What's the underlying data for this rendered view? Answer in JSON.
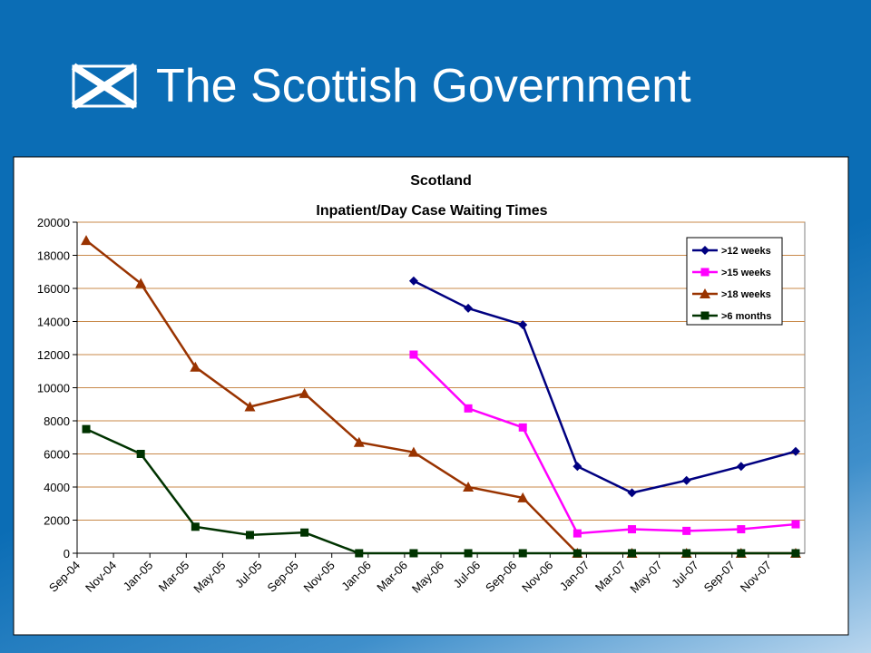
{
  "header": {
    "title": "The Scottish Government"
  },
  "chart_data": {
    "type": "line",
    "title": "Scotland",
    "subtitle": "Inpatient/Day Case Waiting Times",
    "x": [
      "Sep-04",
      "Dec-04",
      "Mar-05",
      "Jun-05",
      "Sep-05",
      "Dec-05",
      "Mar-06",
      "Jun-06",
      "Sep-06",
      "Dec-06",
      "Mar-07",
      "Jun-07",
      "Sep-07",
      "Dec-07"
    ],
    "xlim": [
      "Sep-04",
      "Dec-07"
    ],
    "xticks": [
      "Sep-04",
      "Nov-04",
      "Jan-05",
      "Mar-05",
      "May-05",
      "Jul-05",
      "Sep-05",
      "Nov-05",
      "Jan-06",
      "Mar-06",
      "May-06",
      "Jul-06",
      "Sep-06",
      "Nov-06",
      "Jan-07",
      "Mar-07",
      "May-07",
      "Jul-07",
      "Sep-07",
      "Nov-07"
    ],
    "ylim": [
      0,
      20000
    ],
    "yticks": [
      0,
      2000,
      4000,
      6000,
      8000,
      10000,
      12000,
      14000,
      16000,
      18000,
      20000
    ],
    "grid": true,
    "grid_color": "#c8894a",
    "legend": "upper right",
    "series": [
      {
        "name": ">12 weeks",
        "color": "#000080",
        "marker": "diamond",
        "values": [
          null,
          null,
          null,
          null,
          null,
          null,
          16450,
          14800,
          13800,
          5250,
          3650,
          4400,
          5250,
          6150
        ]
      },
      {
        "name": ">15 weeks",
        "color": "#ff00ff",
        "marker": "square",
        "values": [
          null,
          null,
          null,
          null,
          null,
          null,
          12000,
          8750,
          7600,
          1200,
          1450,
          1350,
          1450,
          1750
        ]
      },
      {
        "name": ">18 weeks",
        "color": "#993300",
        "marker": "triangle",
        "values": [
          18900,
          16300,
          11250,
          8850,
          9650,
          6700,
          6100,
          4000,
          3350,
          0,
          0,
          0,
          0,
          0
        ]
      },
      {
        "name": ">6 months",
        "color": "#003300",
        "marker": "square",
        "values": [
          7500,
          6000,
          1600,
          1100,
          1250,
          0,
          0,
          0,
          0,
          0,
          0,
          0,
          0,
          0
        ]
      }
    ]
  }
}
